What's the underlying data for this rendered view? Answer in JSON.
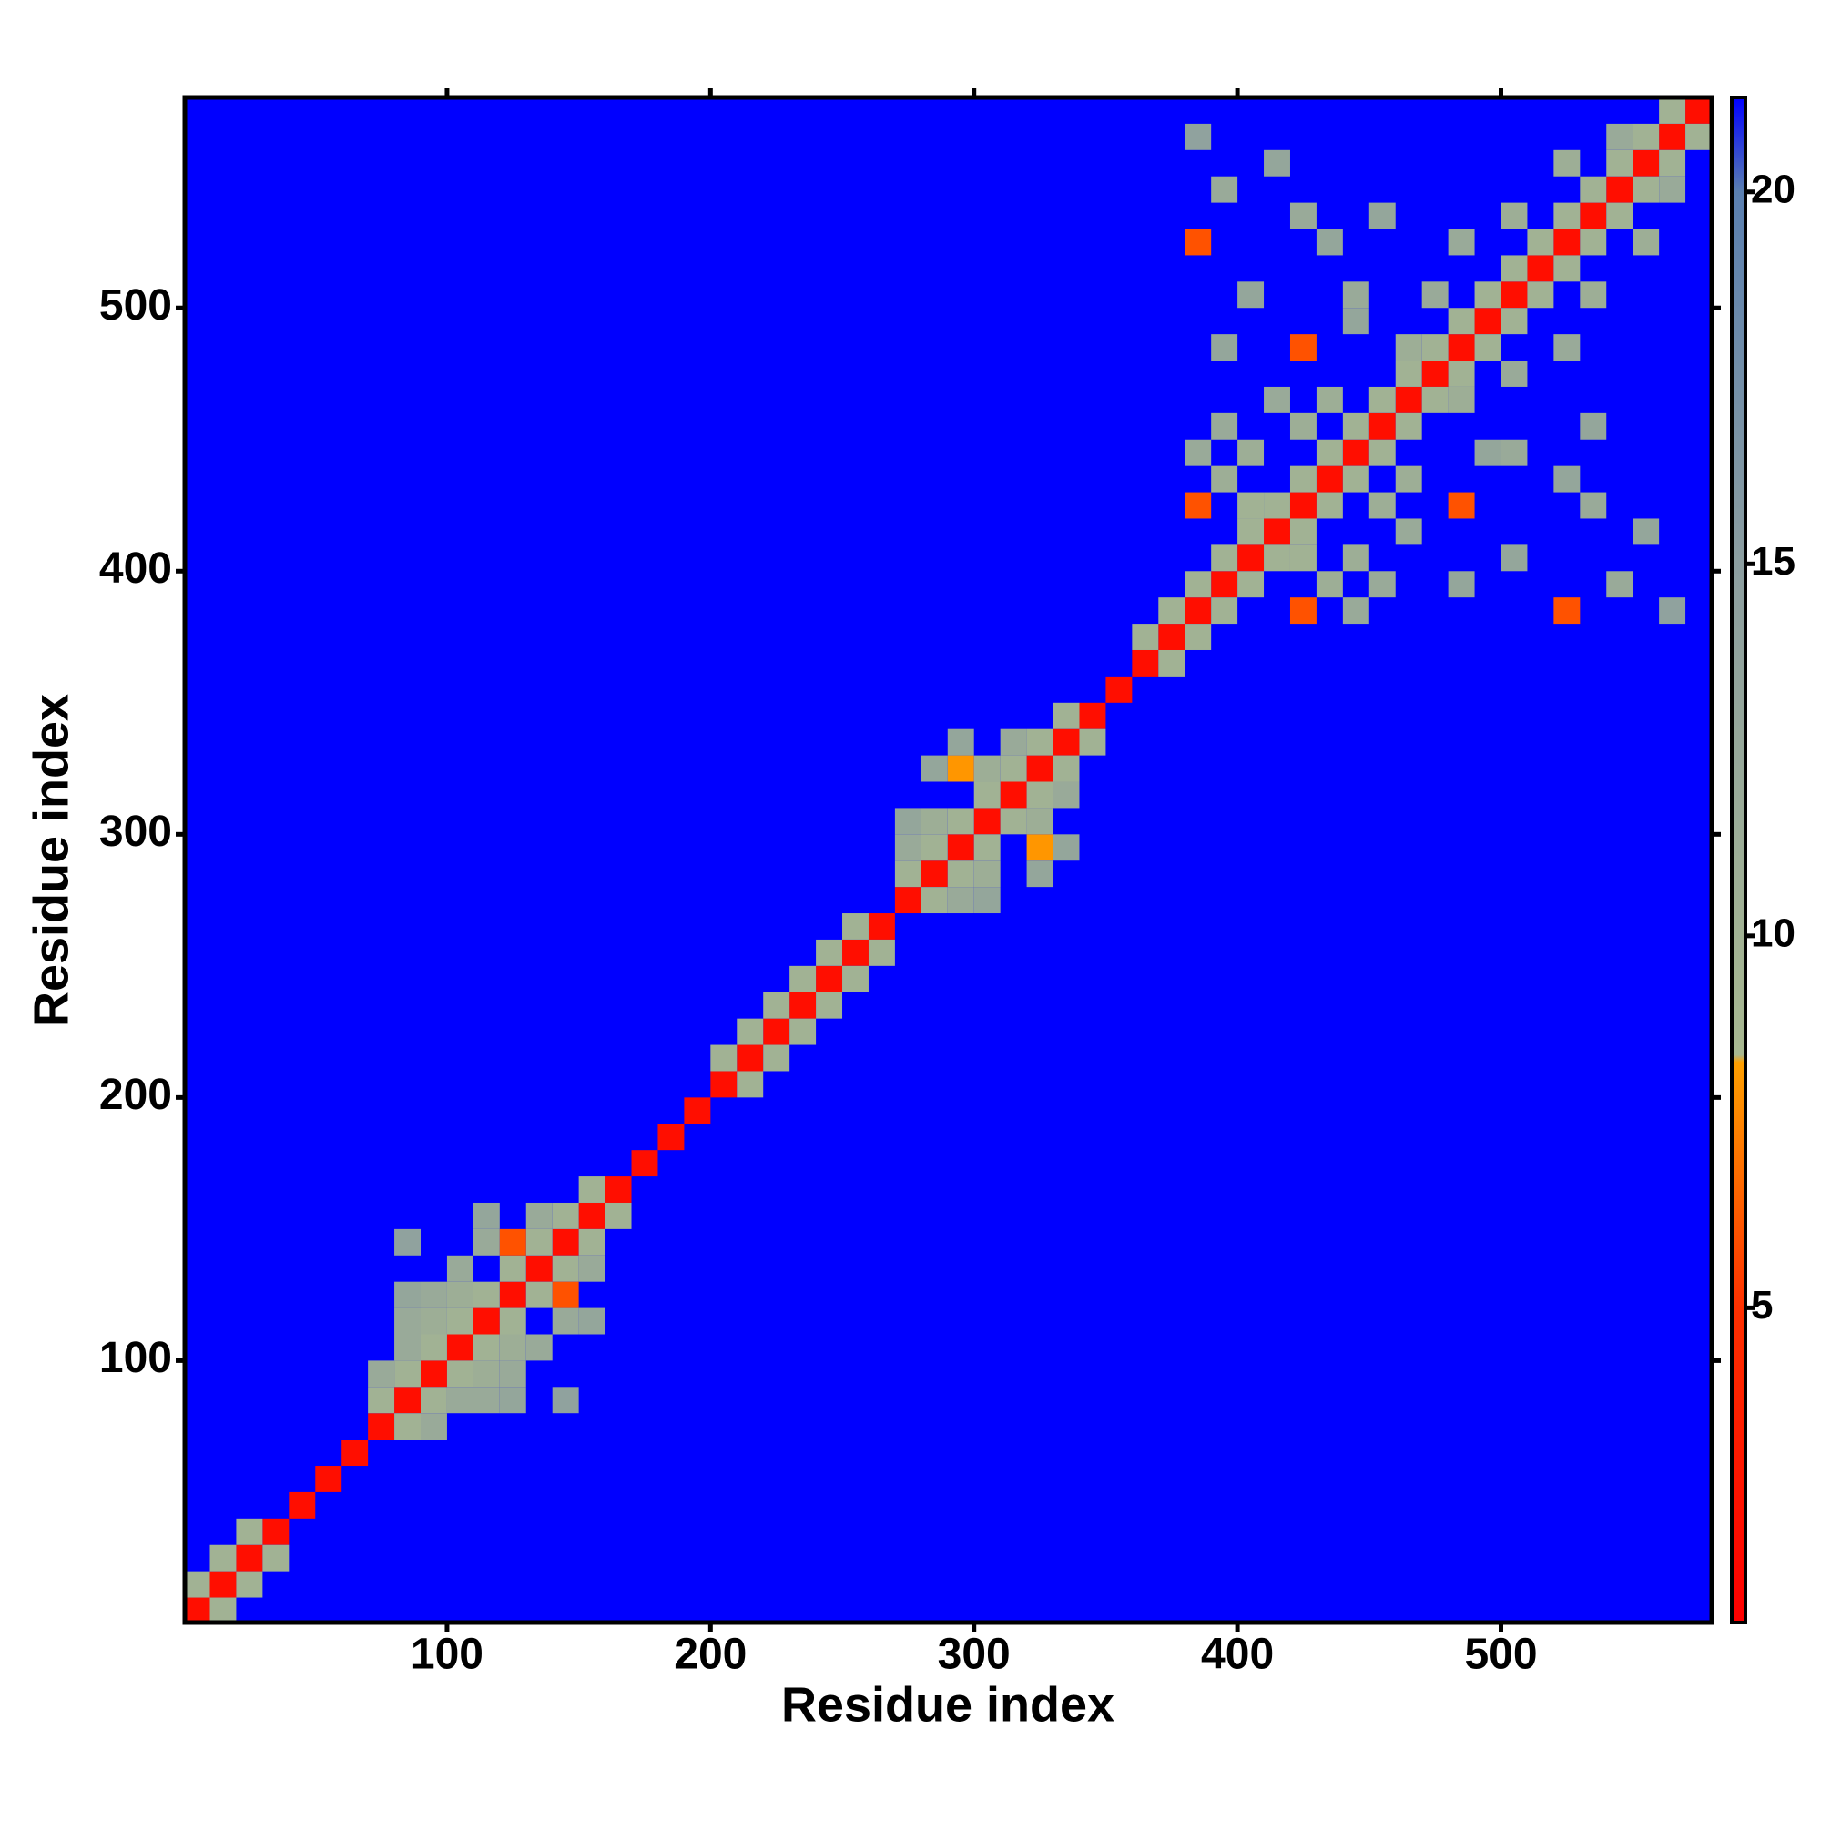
{
  "chart_data": {
    "type": "heatmap",
    "x_label": "Residue index",
    "y_label": "Residue index",
    "xlim": [
      0.5,
      580
    ],
    "ylim": [
      0.5,
      580
    ],
    "xticks": [
      100,
      200,
      300,
      400,
      500
    ],
    "yticks": [
      100,
      200,
      300,
      400,
      500
    ],
    "zlim": [
      0.77,
      21.27
    ],
    "zticks": [
      5,
      10,
      15,
      20
    ],
    "colorscale": [
      [
        0.77,
        "#ff0000"
      ],
      [
        5,
        "#ff3000"
      ],
      [
        8.3,
        "#ffa000"
      ],
      [
        8.4,
        "#a8b890"
      ],
      [
        15,
        "#8c9ea0"
      ],
      [
        20,
        "#5a7fb0"
      ],
      [
        21.27,
        "#0000ff"
      ]
    ],
    "cells": [
      [
        5,
        5,
        2
      ],
      [
        15,
        15,
        2
      ],
      [
        25,
        25,
        2
      ],
      [
        35,
        35,
        2
      ],
      [
        45,
        45,
        2
      ],
      [
        55,
        55,
        2
      ],
      [
        65,
        65,
        2
      ],
      [
        75,
        75,
        2
      ],
      [
        85,
        85,
        2
      ],
      [
        95,
        95,
        2
      ],
      [
        105,
        105,
        2
      ],
      [
        115,
        115,
        2
      ],
      [
        125,
        125,
        2
      ],
      [
        135,
        135,
        2
      ],
      [
        145,
        145,
        2
      ],
      [
        155,
        155,
        2
      ],
      [
        165,
        165,
        2
      ],
      [
        175,
        175,
        2
      ],
      [
        185,
        185,
        2
      ],
      [
        195,
        195,
        2
      ],
      [
        205,
        205,
        2
      ],
      [
        215,
        215,
        2
      ],
      [
        225,
        225,
        2
      ],
      [
        235,
        235,
        2
      ],
      [
        245,
        245,
        2
      ],
      [
        255,
        255,
        2
      ],
      [
        265,
        265,
        2
      ],
      [
        275,
        275,
        2
      ],
      [
        285,
        285,
        2
      ],
      [
        295,
        295,
        2
      ],
      [
        305,
        305,
        2
      ],
      [
        315,
        315,
        2
      ],
      [
        325,
        325,
        2
      ],
      [
        335,
        335,
        2
      ],
      [
        345,
        345,
        2
      ],
      [
        355,
        355,
        2
      ],
      [
        365,
        365,
        2
      ],
      [
        375,
        375,
        2
      ],
      [
        385,
        385,
        2
      ],
      [
        395,
        395,
        2
      ],
      [
        405,
        405,
        2
      ],
      [
        415,
        415,
        2
      ],
      [
        425,
        425,
        2
      ],
      [
        435,
        435,
        2
      ],
      [
        445,
        445,
        2
      ],
      [
        455,
        455,
        2
      ],
      [
        465,
        465,
        2
      ],
      [
        475,
        475,
        2
      ],
      [
        485,
        485,
        2
      ],
      [
        495,
        495,
        2
      ],
      [
        505,
        505,
        2
      ],
      [
        515,
        515,
        2
      ],
      [
        525,
        525,
        2
      ],
      [
        535,
        535,
        2
      ],
      [
        545,
        545,
        2
      ],
      [
        555,
        555,
        2
      ],
      [
        565,
        565,
        2
      ],
      [
        575,
        575,
        2
      ],
      [
        5,
        15,
        10
      ],
      [
        15,
        5,
        10
      ],
      [
        15,
        25,
        10
      ],
      [
        25,
        15,
        10
      ],
      [
        25,
        35,
        10
      ],
      [
        35,
        25,
        10
      ],
      [
        75,
        85,
        10
      ],
      [
        85,
        75,
        10
      ],
      [
        85,
        95,
        10
      ],
      [
        95,
        85,
        10
      ],
      [
        95,
        105,
        10
      ],
      [
        105,
        95,
        10
      ],
      [
        105,
        115,
        10
      ],
      [
        115,
        105,
        10
      ],
      [
        115,
        125,
        10
      ],
      [
        125,
        115,
        10
      ],
      [
        125,
        135,
        10
      ],
      [
        135,
        125,
        10
      ],
      [
        135,
        145,
        10
      ],
      [
        145,
        135,
        10
      ],
      [
        145,
        155,
        10
      ],
      [
        155,
        145,
        10
      ],
      [
        155,
        165,
        10
      ],
      [
        165,
        155,
        10
      ],
      [
        205,
        215,
        10
      ],
      [
        215,
        205,
        10
      ],
      [
        215,
        225,
        10
      ],
      [
        225,
        215,
        10
      ],
      [
        225,
        235,
        10
      ],
      [
        235,
        225,
        10
      ],
      [
        235,
        245,
        10
      ],
      [
        245,
        235,
        10
      ],
      [
        245,
        255,
        10
      ],
      [
        255,
        245,
        10
      ],
      [
        255,
        265,
        10
      ],
      [
        265,
        255,
        10
      ],
      [
        275,
        285,
        10
      ],
      [
        285,
        275,
        10
      ],
      [
        285,
        295,
        10
      ],
      [
        295,
        285,
        10
      ],
      [
        295,
        305,
        10
      ],
      [
        305,
        295,
        10
      ],
      [
        305,
        315,
        10
      ],
      [
        315,
        305,
        10
      ],
      [
        315,
        325,
        10
      ],
      [
        325,
        315,
        10
      ],
      [
        325,
        335,
        10
      ],
      [
        335,
        325,
        10
      ],
      [
        335,
        345,
        10
      ],
      [
        345,
        335,
        10
      ],
      [
        365,
        375,
        10
      ],
      [
        375,
        365,
        10
      ],
      [
        375,
        385,
        10
      ],
      [
        385,
        375,
        10
      ],
      [
        385,
        395,
        10
      ],
      [
        395,
        385,
        10
      ],
      [
        395,
        405,
        10
      ],
      [
        405,
        395,
        10
      ],
      [
        405,
        415,
        10
      ],
      [
        415,
        405,
        10
      ],
      [
        415,
        425,
        10
      ],
      [
        425,
        415,
        10
      ],
      [
        425,
        435,
        10
      ],
      [
        435,
        425,
        10
      ],
      [
        435,
        445,
        10
      ],
      [
        445,
        435,
        10
      ],
      [
        445,
        455,
        10
      ],
      [
        455,
        445,
        10
      ],
      [
        455,
        465,
        10
      ],
      [
        465,
        455,
        10
      ],
      [
        465,
        475,
        10
      ],
      [
        475,
        465,
        10
      ],
      [
        475,
        485,
        10
      ],
      [
        485,
        475,
        10
      ],
      [
        485,
        495,
        10
      ],
      [
        495,
        485,
        10
      ],
      [
        495,
        505,
        10
      ],
      [
        505,
        495,
        10
      ],
      [
        505,
        515,
        10
      ],
      [
        515,
        505,
        10
      ],
      [
        515,
        525,
        10
      ],
      [
        525,
        515,
        10
      ],
      [
        525,
        535,
        10
      ],
      [
        535,
        525,
        10
      ],
      [
        535,
        545,
        10
      ],
      [
        545,
        535,
        10
      ],
      [
        545,
        555,
        10
      ],
      [
        555,
        545,
        10
      ],
      [
        555,
        565,
        10
      ],
      [
        565,
        555,
        10
      ],
      [
        565,
        575,
        10
      ],
      [
        575,
        565,
        10
      ],
      [
        85,
        105,
        12
      ],
      [
        105,
        85,
        12
      ],
      [
        85,
        115,
        12
      ],
      [
        115,
        85,
        12
      ],
      [
        95,
        115,
        11
      ],
      [
        115,
        95,
        11
      ],
      [
        95,
        125,
        12
      ],
      [
        125,
        95,
        12
      ],
      [
        85,
        125,
        13
      ],
      [
        125,
        85,
        13
      ],
      [
        105,
        135,
        12
      ],
      [
        135,
        105,
        12
      ],
      [
        115,
        145,
        12
      ],
      [
        145,
        115,
        12
      ],
      [
        125,
        145,
        6
      ],
      [
        145,
        125,
        6
      ],
      [
        135,
        155,
        12
      ],
      [
        155,
        135,
        12
      ],
      [
        85,
        145,
        14
      ],
      [
        145,
        85,
        14
      ],
      [
        115,
        155,
        13
      ],
      [
        155,
        115,
        13
      ],
      [
        105,
        125,
        11
      ],
      [
        125,
        105,
        11
      ],
      [
        75,
        95,
        12
      ],
      [
        95,
        75,
        12
      ],
      [
        275,
        295,
        12
      ],
      [
        295,
        275,
        12
      ],
      [
        285,
        305,
        11
      ],
      [
        305,
        285,
        11
      ],
      [
        295,
        325,
        8
      ],
      [
        325,
        295,
        8
      ],
      [
        305,
        325,
        11
      ],
      [
        325,
        305,
        11
      ],
      [
        285,
        325,
        13
      ],
      [
        325,
        285,
        13
      ],
      [
        315,
        335,
        12
      ],
      [
        335,
        315,
        12
      ],
      [
        275,
        305,
        13
      ],
      [
        305,
        275,
        13
      ],
      [
        295,
        335,
        13
      ],
      [
        335,
        295,
        13
      ],
      [
        385,
        425,
        6
      ],
      [
        425,
        385,
        6
      ],
      [
        395,
        435,
        11
      ],
      [
        435,
        395,
        11
      ],
      [
        405,
        445,
        11
      ],
      [
        445,
        405,
        11
      ],
      [
        385,
        445,
        12
      ],
      [
        445,
        385,
        12
      ],
      [
        425,
        455,
        11
      ],
      [
        455,
        425,
        11
      ],
      [
        405,
        425,
        10
      ],
      [
        425,
        405,
        10
      ],
      [
        425,
        485,
        6
      ],
      [
        485,
        425,
        6
      ],
      [
        395,
        485,
        13
      ],
      [
        485,
        395,
        13
      ],
      [
        445,
        495,
        13
      ],
      [
        495,
        445,
        13
      ],
      [
        385,
        525,
        6
      ],
      [
        525,
        385,
        6
      ],
      [
        395,
        545,
        12
      ],
      [
        545,
        395,
        12
      ],
      [
        425,
        535,
        12
      ],
      [
        535,
        425,
        12
      ],
      [
        435,
        525,
        13
      ],
      [
        525,
        435,
        13
      ],
      [
        445,
        505,
        12
      ],
      [
        505,
        445,
        12
      ],
      [
        465,
        485,
        11
      ],
      [
        485,
        465,
        11
      ],
      [
        485,
        525,
        12
      ],
      [
        525,
        485,
        12
      ],
      [
        505,
        535,
        11
      ],
      [
        535,
        505,
        11
      ],
      [
        525,
        555,
        11
      ],
      [
        555,
        525,
        11
      ],
      [
        545,
        565,
        12
      ],
      [
        565,
        545,
        12
      ],
      [
        415,
        555,
        13
      ],
      [
        555,
        415,
        13
      ],
      [
        385,
        565,
        14
      ],
      [
        565,
        385,
        14
      ],
      [
        455,
        535,
        13
      ],
      [
        535,
        455,
        13
      ],
      [
        405,
        505,
        13
      ],
      [
        505,
        405,
        13
      ],
      [
        475,
        505,
        12
      ],
      [
        505,
        475,
        12
      ],
      [
        395,
        455,
        12
      ],
      [
        455,
        395,
        12
      ],
      [
        435,
        465,
        11
      ],
      [
        465,
        435,
        11
      ],
      [
        415,
        465,
        12
      ],
      [
        465,
        415,
        12
      ]
    ]
  }
}
